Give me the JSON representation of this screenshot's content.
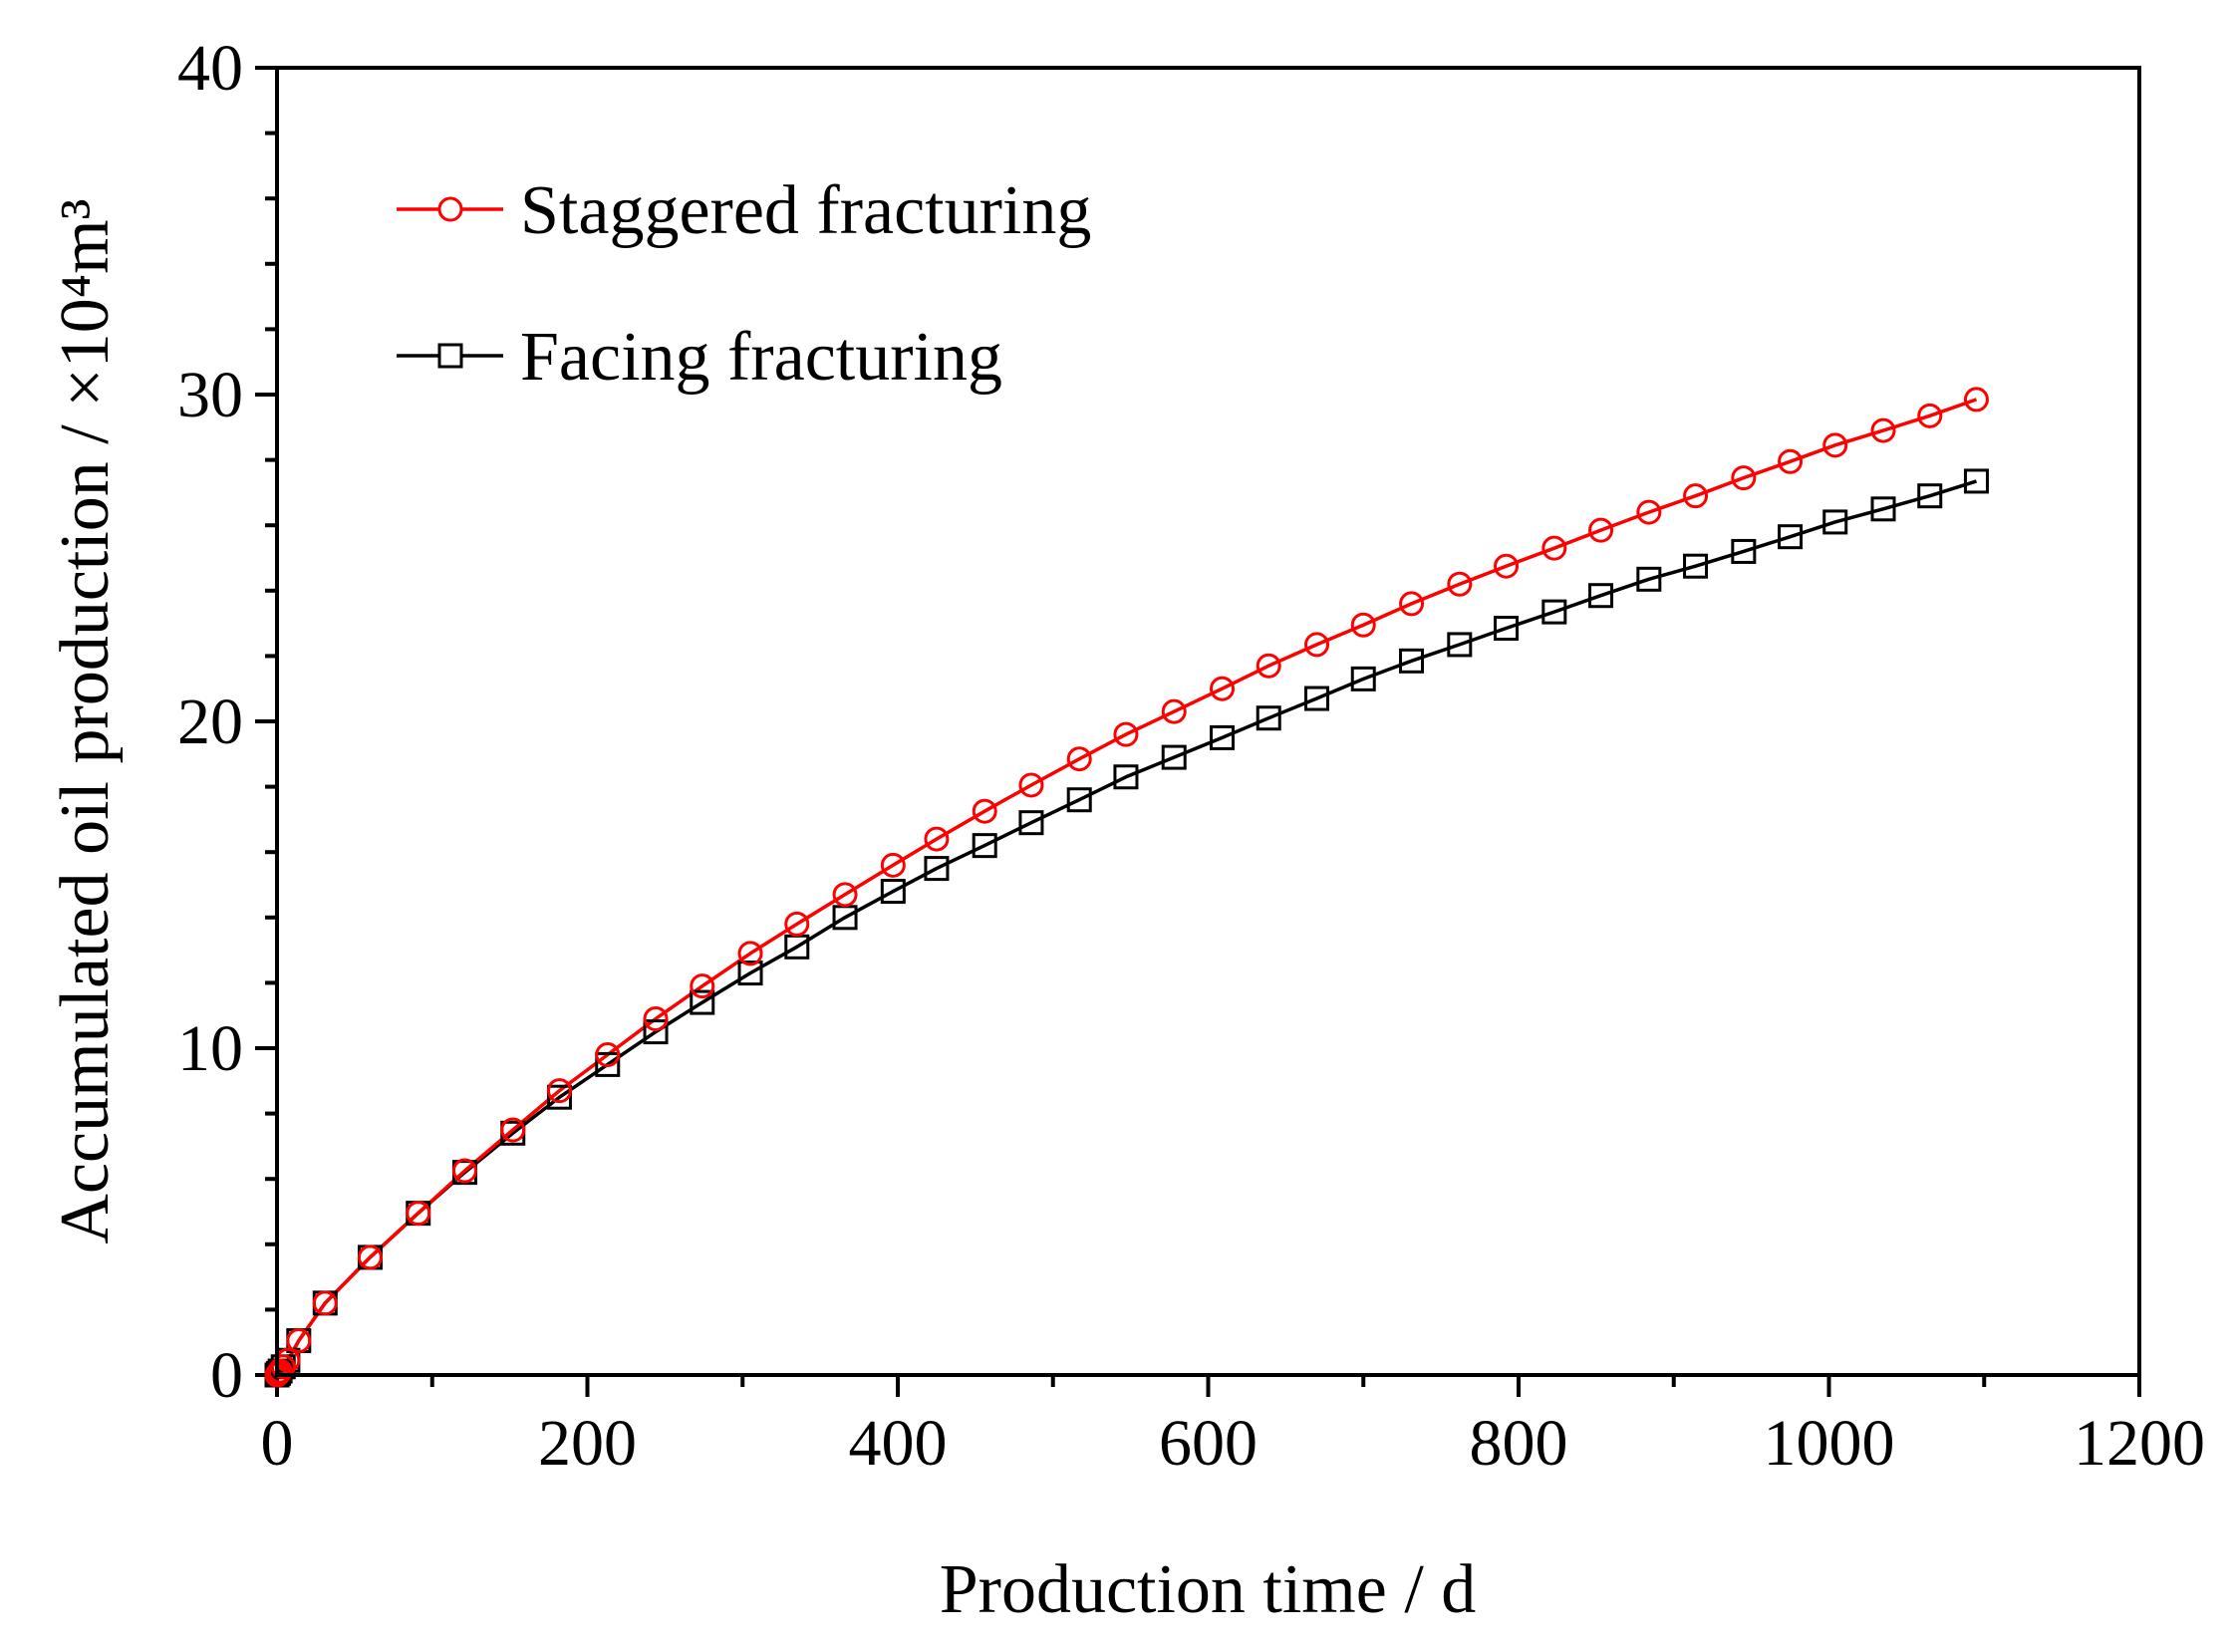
{
  "chart_data": {
    "type": "line",
    "xlabel": "Production time / d",
    "ylabel": "Accumulated oil production / ×10⁴m³",
    "xlim": [
      0,
      1200
    ],
    "ylim": [
      0,
      40
    ],
    "xticks": [
      "0",
      "200",
      "400",
      "600",
      "800",
      "1000",
      "1200"
    ],
    "yticks": [
      "0",
      "10",
      "20",
      "30",
      "40"
    ],
    "grid": false,
    "legend_position": "top-left",
    "x": [
      0,
      1,
      2,
      4,
      7,
      14,
      31,
      60,
      91,
      121,
      152,
      182,
      213,
      244,
      274,
      305,
      335,
      366,
      397,
      425,
      456,
      486,
      517,
      547,
      578,
      609,
      639,
      670,
      700,
      731,
      762,
      792,
      823,
      853,
      884,
      914,
      945,
      975,
      1004,
      1035,
      1065,
      1095
    ],
    "series": [
      {
        "name": "Staggered fracturing",
        "color": "#ff0000",
        "marker": "circle",
        "values": [
          0.0,
          0.05,
          0.12,
          0.25,
          0.45,
          1.05,
          2.2,
          3.6,
          4.95,
          6.25,
          7.5,
          8.7,
          9.8,
          10.9,
          11.9,
          12.9,
          13.8,
          14.7,
          15.6,
          16.4,
          17.25,
          18.05,
          18.85,
          19.6,
          20.3,
          21.0,
          21.7,
          22.35,
          22.95,
          23.6,
          24.2,
          24.75,
          25.3,
          25.85,
          26.4,
          26.9,
          27.45,
          27.95,
          28.45,
          28.9,
          29.35,
          29.85
        ]
      },
      {
        "name": "Facing fracturing",
        "color": "#000000",
        "marker": "square",
        "values": [
          0.0,
          0.05,
          0.12,
          0.25,
          0.45,
          1.05,
          2.2,
          3.6,
          4.95,
          6.2,
          7.4,
          8.5,
          9.5,
          10.5,
          11.4,
          12.3,
          13.1,
          14.0,
          14.8,
          15.5,
          16.2,
          16.9,
          17.6,
          18.3,
          18.9,
          19.5,
          20.1,
          20.7,
          21.3,
          21.85,
          22.35,
          22.85,
          23.35,
          23.85,
          24.35,
          24.75,
          25.2,
          25.65,
          26.1,
          26.5,
          26.9,
          27.35
        ]
      }
    ]
  }
}
